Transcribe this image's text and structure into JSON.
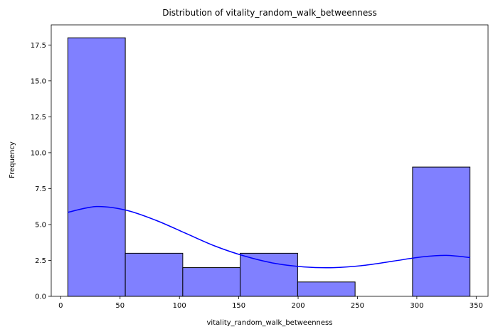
{
  "chart_data": {
    "type": "bar",
    "title": "Distribution of vitality_random_walk_betweenness",
    "xlabel": "vitality_random_walk_betweenness",
    "ylabel": "Frequency",
    "xlim": [
      -8,
      360
    ],
    "ylim": [
      0,
      18.9
    ],
    "x_ticks": [
      0,
      50,
      100,
      150,
      200,
      250,
      300,
      350
    ],
    "y_ticks": [
      0.0,
      2.5,
      5.0,
      7.5,
      10.0,
      12.5,
      15.0,
      17.5
    ],
    "bins": [
      {
        "x0": 6,
        "x1": 54.4,
        "count": 18
      },
      {
        "x0": 54.4,
        "x1": 102.8,
        "count": 3
      },
      {
        "x0": 102.8,
        "x1": 151.2,
        "count": 2
      },
      {
        "x0": 151.2,
        "x1": 199.6,
        "count": 3
      },
      {
        "x0": 199.6,
        "x1": 248,
        "count": 1
      },
      {
        "x0": 248,
        "x1": 296.4,
        "count": 0
      },
      {
        "x0": 296.4,
        "x1": 344.8,
        "count": 9
      }
    ],
    "kde": {
      "x": [
        6,
        30,
        55,
        80,
        105,
        130,
        155,
        180,
        205,
        230,
        255,
        280,
        305,
        325,
        345
      ],
      "y": [
        5.85,
        6.25,
        6.0,
        5.3,
        4.4,
        3.5,
        2.8,
        2.3,
        2.05,
        2.0,
        2.15,
        2.45,
        2.75,
        2.85,
        2.7
      ]
    },
    "grid": false,
    "colors": {
      "bar_fill": "#8080ff",
      "bar_edge": "#000000",
      "kde_line": "#0000ff"
    }
  }
}
